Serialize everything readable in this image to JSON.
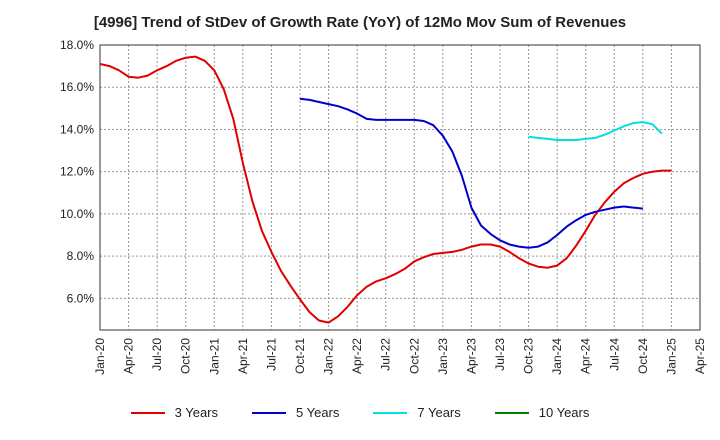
{
  "chart_data": {
    "type": "line",
    "title": "[4996]  Trend of StDev of Growth Rate (YoY) of 12Mo Mov Sum of Revenues",
    "xlabel": "",
    "ylabel": "",
    "ylim": [
      4.5,
      18.0
    ],
    "y_ticks": [
      6.0,
      8.0,
      10.0,
      12.0,
      14.0,
      16.0,
      18.0
    ],
    "y_tick_labels": [
      "6.0%",
      "8.0%",
      "10.0%",
      "12.0%",
      "14.0%",
      "16.0%",
      "18.0%"
    ],
    "x_start": "Jan-20",
    "x_end": "Apr-25",
    "x_tick_labels": [
      "Jan-20",
      "Apr-20",
      "Jul-20",
      "Oct-20",
      "Jan-21",
      "Apr-21",
      "Jul-21",
      "Oct-21",
      "Jan-22",
      "Apr-22",
      "Jul-22",
      "Oct-22",
      "Jan-23",
      "Apr-23",
      "Jul-23",
      "Oct-23",
      "Jan-24",
      "Apr-24",
      "Jul-24",
      "Oct-24",
      "Jan-25",
      "Apr-25"
    ],
    "grid": true,
    "legend_position": "bottom",
    "series": [
      {
        "name": "3 Years",
        "color": "#e00000",
        "start_month_index": 0,
        "values": [
          17.1,
          17.0,
          16.8,
          16.5,
          16.45,
          16.55,
          16.8,
          17.0,
          17.25,
          17.4,
          17.45,
          17.25,
          16.8,
          15.9,
          14.5,
          12.4,
          10.6,
          9.2,
          8.2,
          7.3,
          6.6,
          5.95,
          5.35,
          4.95,
          4.85,
          5.15,
          5.6,
          6.15,
          6.55,
          6.8,
          6.95,
          7.15,
          7.4,
          7.75,
          7.95,
          8.1,
          8.15,
          8.2,
          8.3,
          8.45,
          8.55,
          8.55,
          8.45,
          8.2,
          7.9,
          7.65,
          7.5,
          7.45,
          7.55,
          7.9,
          8.5,
          9.2,
          9.95,
          10.55,
          11.05,
          11.45,
          11.7,
          11.9,
          12.0,
          12.05,
          12.05
        ]
      },
      {
        "name": "5 Years",
        "color": "#0000cc",
        "start_month_index": 21,
        "values": [
          15.45,
          15.4,
          15.3,
          15.2,
          15.1,
          14.95,
          14.75,
          14.5,
          14.45,
          14.45,
          14.45,
          14.45,
          14.45,
          14.4,
          14.2,
          13.7,
          12.95,
          11.8,
          10.3,
          9.45,
          9.05,
          8.75,
          8.55,
          8.45,
          8.4,
          8.45,
          8.65,
          9.0,
          9.4,
          9.7,
          9.95,
          10.1,
          10.2,
          10.3,
          10.35,
          10.3,
          10.25
        ]
      },
      {
        "name": "7 Years",
        "color": "#00e0e0",
        "start_month_index": 45,
        "values": [
          13.65,
          13.6,
          13.55,
          13.5,
          13.5,
          13.5,
          13.55,
          13.6,
          13.75,
          13.95,
          14.15,
          14.3,
          14.35,
          14.25,
          13.8
        ]
      },
      {
        "name": "10 Years",
        "color": "#008000",
        "start_month_index": 0,
        "values": []
      }
    ]
  }
}
